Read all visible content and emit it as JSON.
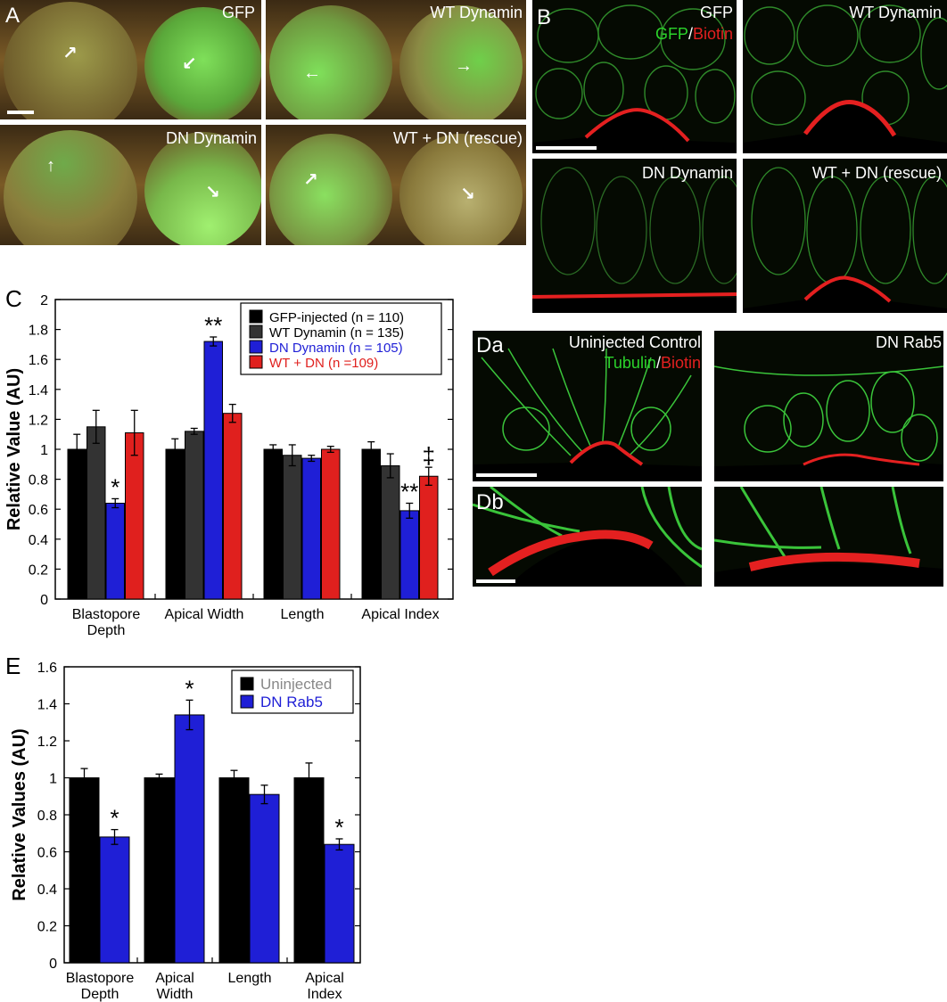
{
  "panel_a": {
    "label": "A",
    "titles": [
      "GFP",
      "WT Dynamin",
      "DN Dynamin",
      "WT + DN (rescue)"
    ]
  },
  "panel_b": {
    "label": "B",
    "titles": [
      "GFP",
      "WT Dynamin",
      "DN Dynamin",
      "WT + DN (rescue)"
    ],
    "stain_green": "GFP",
    "stain_sep": "/",
    "stain_red": "Biotin"
  },
  "panel_d": {
    "label_a": "Da",
    "label_b": "Db",
    "title_left": "Uninjected Control",
    "title_right": "DN Rab5",
    "stain_green": "Tubulin",
    "stain_sep": "/",
    "stain_red": "Biotin"
  },
  "colors": {
    "black": "#000000",
    "dark_gray": "#333333",
    "blue": "#1f1fd6",
    "red": "#e0201e",
    "legend_gray_text": "#888888",
    "stain_green": "#2bd42b",
    "stain_red": "#e42020"
  },
  "chart_data": [
    {
      "panel_label": "C",
      "type": "bar",
      "ylabel": "Relative Value (AU)",
      "ylim": [
        0,
        2
      ],
      "yticks": [
        "0",
        "0.2",
        "0.4",
        "0.6",
        "0.8",
        "1",
        "1.2",
        "1.4",
        "1.6",
        "1.8",
        "2"
      ],
      "categories": [
        "Blastopore Depth",
        "Apical Width",
        "Length",
        "Apical Index"
      ],
      "legend_position": "top-right",
      "series": [
        {
          "name": "GFP-injected (n = 110)",
          "color": "#000000",
          "text_color": "#000000",
          "values": [
            1.0,
            1.0,
            1.0,
            1.0
          ],
          "errors": [
            0.1,
            0.07,
            0.03,
            0.05
          ]
        },
        {
          "name": "WT Dynamin (n = 135)",
          "color": "#333333",
          "text_color": "#000000",
          "values": [
            1.15,
            1.12,
            0.96,
            0.89
          ],
          "errors": [
            0.11,
            0.02,
            0.07,
            0.08
          ]
        },
        {
          "name": "DN Dynamin (n = 105)",
          "color": "#1f1fd6",
          "text_color": "#1f1fd6",
          "values": [
            0.64,
            1.72,
            0.94,
            0.59
          ],
          "errors": [
            0.03,
            0.03,
            0.02,
            0.05
          ]
        },
        {
          "name": "WT + DN (n =109)",
          "color": "#e0201e",
          "text_color": "#e0201e",
          "values": [
            1.11,
            1.24,
            1.0,
            0.82
          ],
          "errors": [
            0.15,
            0.06,
            0.02,
            0.06
          ]
        }
      ],
      "annotations": [
        {
          "category": 0,
          "series": 2,
          "text": "*"
        },
        {
          "category": 1,
          "series": 2,
          "text": "**"
        },
        {
          "category": 3,
          "series": 2,
          "text": "**"
        },
        {
          "category": 3,
          "series": 3,
          "text": "‡"
        }
      ]
    },
    {
      "panel_label": "E",
      "type": "bar",
      "ylabel": "Relative Values (AU)",
      "ylim": [
        0,
        1.6
      ],
      "yticks": [
        "0",
        "0.2",
        "0.4",
        "0.6",
        "0.8",
        "1",
        "1.2",
        "1.4",
        "1.6"
      ],
      "categories": [
        "Blastopore Depth",
        "Apical Width",
        "Length",
        "Apical Index"
      ],
      "legend_position": "top-right",
      "series": [
        {
          "name": "Uninjected",
          "color": "#000000",
          "text_color": "#888888",
          "values": [
            1.0,
            1.0,
            1.0,
            1.0
          ],
          "errors": [
            0.05,
            0.02,
            0.04,
            0.08
          ]
        },
        {
          "name": "DN Rab5",
          "color": "#1f1fd6",
          "text_color": "#1f1fd6",
          "values": [
            0.68,
            1.34,
            0.91,
            0.64
          ],
          "errors": [
            0.04,
            0.08,
            0.05,
            0.03
          ]
        }
      ],
      "annotations": [
        {
          "category": 0,
          "series": 1,
          "text": "*"
        },
        {
          "category": 1,
          "series": 1,
          "text": "*"
        },
        {
          "category": 3,
          "series": 1,
          "text": "*"
        }
      ]
    }
  ]
}
